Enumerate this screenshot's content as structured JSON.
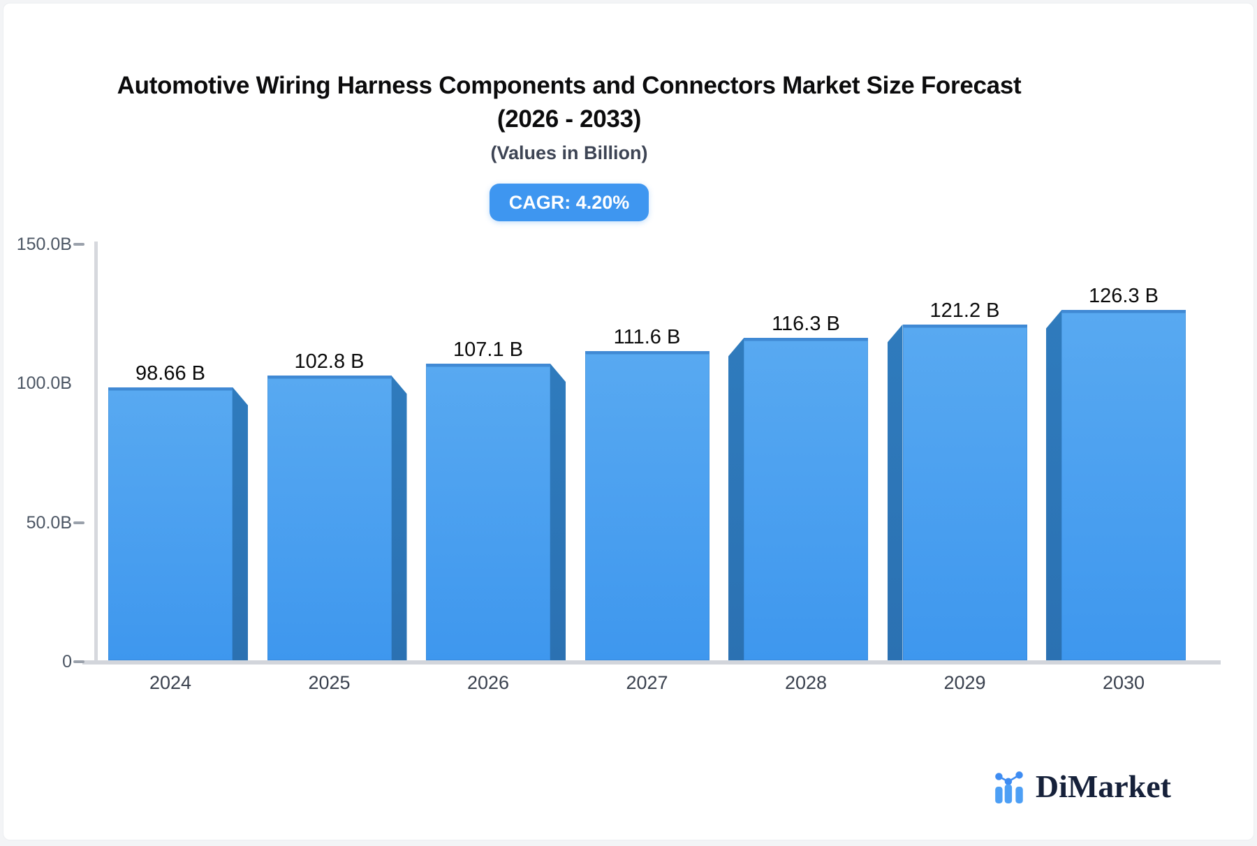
{
  "header": {
    "title_line1": "Automotive Wiring Harness Components and Connectors Market Size Forecast",
    "title_line2": "(2026 - 2033)",
    "subtitle": "(Values in Billion)",
    "cagr_badge": "CAGR: 4.20%"
  },
  "chart_data": {
    "type": "bar",
    "title": "Automotive Wiring Harness Components and Connectors Market Size Forecast (2026 - 2033)",
    "subtitle": "(Values in Billion)",
    "cagr": "4.20%",
    "categories": [
      "2024",
      "2025",
      "2026",
      "2027",
      "2028",
      "2029",
      "2030"
    ],
    "values": [
      98.66,
      102.8,
      107.1,
      111.6,
      116.3,
      121.2,
      126.3
    ],
    "value_labels": [
      "98.66 B",
      "102.8 B",
      "107.1 B",
      "111.6 B",
      "116.3 B",
      "121.2 B",
      "126.3 B"
    ],
    "xlabel": "",
    "ylabel": "",
    "ylim": [
      0,
      150
    ],
    "grid": false,
    "legend": false,
    "y_ticks": [
      {
        "label": "150.0B",
        "value": 150,
        "dash": true
      },
      {
        "label": "100.0B",
        "value": 100,
        "dash": false
      },
      {
        "label": "50.0B",
        "value": 50,
        "dash": true
      },
      {
        "label": "0",
        "value": 0,
        "dash": true
      }
    ],
    "colors": {
      "bar_face_top": "#58a9f1",
      "bar_face_bottom": "#3e97ee",
      "bar_side": "#2d76ba",
      "axis_line": "#d2d5db",
      "badge": "#3e96f0"
    }
  },
  "branding": {
    "logo_text": "DiMarket",
    "logo_icon": "mini-bar-chart-icon"
  }
}
